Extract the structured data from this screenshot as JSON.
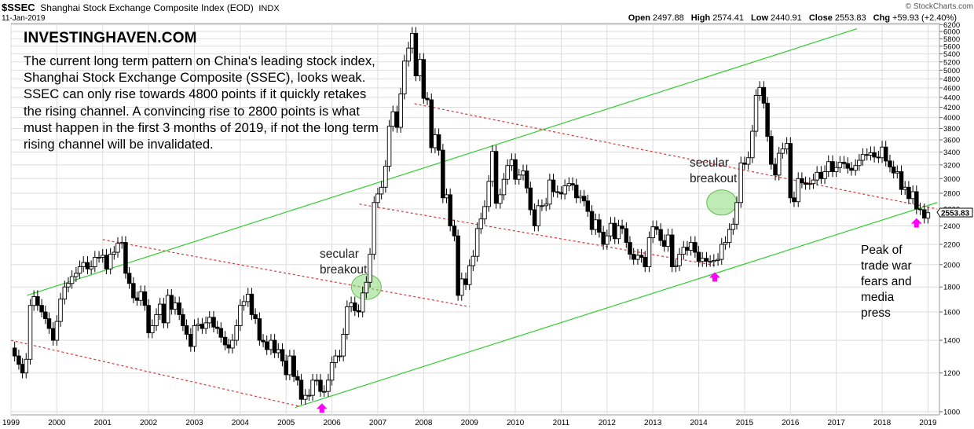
{
  "header": {
    "symbol": "$SSEC",
    "name": "Shanghai Stock Exchange Composite Index (EOD)",
    "exchange": "INDX",
    "date": "11-Jan-2019",
    "open_label": "Open",
    "open": "2497.88",
    "high_label": "High",
    "high": "2574.41",
    "low_label": "Low",
    "low": "2440.91",
    "close_label": "Close",
    "close": "2553.83",
    "chg_label": "Chg",
    "chg": "+59.93 (+2.40%)",
    "credit": "© StockCharts.com"
  },
  "annotations": {
    "brand": "INVESTINGHAVEN.COM",
    "description": "The current long term pattern on China's leading stock index, Shanghai Stock Exchange Composite (SSEC), looks weak. SSEC can only rise towards 4800 points if it quickly retakes the rising channel. A convincing rise to 2800 points is what must happen in the first 3 months of 2019, if not the long term rising channel will be invalidated.",
    "breakout1_line1": "secular",
    "breakout1_line2": "breakout",
    "breakout2_line1": "secular",
    "breakout2_line2": "breakout",
    "peak_line1": "Peak of",
    "peak_line2": "trade war",
    "peak_line3": "fears and",
    "peak_line4": "media",
    "peak_line5": "press"
  },
  "colors": {
    "candle_up": "#000000",
    "candle_down": "#000000",
    "trend_green": "#33cc33",
    "channel_red": "#dd3333",
    "ellipse_fill": "#88dd77",
    "arrow_magenta": "#ff00ff",
    "grid": "#dddddd"
  },
  "chart_data": {
    "type": "candlestick",
    "scale": "log",
    "ylim": [
      1000,
      6200
    ],
    "y_ticks": [
      1000,
      1200,
      1400,
      1600,
      1800,
      2000,
      2200,
      2400,
      2600,
      2800,
      3000,
      3200,
      3400,
      3600,
      3800,
      4000,
      4200,
      4400,
      4600,
      4800,
      5000,
      5200,
      5400,
      5600,
      5800,
      6000,
      6200
    ],
    "x_ticks": [
      "1999",
      "2000",
      "2001",
      "2002",
      "2003",
      "2004",
      "2005",
      "2006",
      "2007",
      "2008",
      "2009",
      "2010",
      "2011",
      "2012",
      "2013",
      "2014",
      "2015",
      "2016",
      "2017",
      "2018",
      "2019"
    ],
    "grid": true,
    "last_value_label": "2553.83",
    "monthly_close": [
      [
        1999.0,
        1350
      ],
      [
        1999.08,
        1300
      ],
      [
        1999.17,
        1250
      ],
      [
        1999.25,
        1200
      ],
      [
        1999.33,
        1280
      ],
      [
        1999.42,
        1650
      ],
      [
        1999.5,
        1720
      ],
      [
        1999.58,
        1650
      ],
      [
        1999.67,
        1600
      ],
      [
        1999.75,
        1550
      ],
      [
        1999.83,
        1480
      ],
      [
        1999.92,
        1400
      ],
      [
        2000.0,
        1530
      ],
      [
        2000.08,
        1700
      ],
      [
        2000.17,
        1800
      ],
      [
        2000.25,
        1830
      ],
      [
        2000.33,
        1890
      ],
      [
        2000.42,
        1920
      ],
      [
        2000.5,
        1980
      ],
      [
        2000.58,
        2020
      ],
      [
        2000.67,
        1960
      ],
      [
        2000.75,
        1980
      ],
      [
        2000.83,
        2070
      ],
      [
        2000.92,
        2070
      ],
      [
        2001.0,
        2090
      ],
      [
        2001.08,
        1960
      ],
      [
        2001.17,
        2100
      ],
      [
        2001.25,
        2120
      ],
      [
        2001.33,
        2210
      ],
      [
        2001.42,
        2220
      ],
      [
        2001.5,
        1920
      ],
      [
        2001.58,
        1830
      ],
      [
        2001.67,
        1710
      ],
      [
        2001.75,
        1690
      ],
      [
        2001.83,
        1760
      ],
      [
        2001.92,
        1650
      ],
      [
        2002.0,
        1450
      ],
      [
        2002.08,
        1500
      ],
      [
        2002.17,
        1580
      ],
      [
        2002.25,
        1660
      ],
      [
        2002.33,
        1520
      ],
      [
        2002.42,
        1730
      ],
      [
        2002.5,
        1620
      ],
      [
        2002.58,
        1670
      ],
      [
        2002.67,
        1580
      ],
      [
        2002.75,
        1500
      ],
      [
        2002.83,
        1440
      ],
      [
        2002.92,
        1360
      ],
      [
        2003.0,
        1500
      ],
      [
        2003.08,
        1510
      ],
      [
        2003.17,
        1480
      ],
      [
        2003.25,
        1520
      ],
      [
        2003.33,
        1560
      ],
      [
        2003.42,
        1490
      ],
      [
        2003.5,
        1480
      ],
      [
        2003.58,
        1420
      ],
      [
        2003.67,
        1370
      ],
      [
        2003.75,
        1350
      ],
      [
        2003.83,
        1400
      ],
      [
        2003.92,
        1500
      ],
      [
        2004.0,
        1650
      ],
      [
        2004.08,
        1680
      ],
      [
        2004.17,
        1740
      ],
      [
        2004.25,
        1580
      ],
      [
        2004.33,
        1550
      ],
      [
        2004.42,
        1400
      ],
      [
        2004.5,
        1390
      ],
      [
        2004.58,
        1340
      ],
      [
        2004.67,
        1400
      ],
      [
        2004.75,
        1320
      ],
      [
        2004.83,
        1340
      ],
      [
        2004.92,
        1270
      ],
      [
        2005.0,
        1190
      ],
      [
        2005.08,
        1300
      ],
      [
        2005.17,
        1180
      ],
      [
        2005.25,
        1160
      ],
      [
        2005.33,
        1060
      ],
      [
        2005.42,
        1080
      ],
      [
        2005.5,
        1080
      ],
      [
        2005.58,
        1160
      ],
      [
        2005.67,
        1160
      ],
      [
        2005.75,
        1100
      ],
      [
        2005.83,
        1100
      ],
      [
        2005.92,
        1160
      ],
      [
        2006.0,
        1260
      ],
      [
        2006.08,
        1300
      ],
      [
        2006.17,
        1300
      ],
      [
        2006.25,
        1440
      ],
      [
        2006.33,
        1640
      ],
      [
        2006.42,
        1670
      ],
      [
        2006.5,
        1610
      ],
      [
        2006.58,
        1600
      ],
      [
        2006.67,
        1750
      ],
      [
        2006.75,
        1840
      ],
      [
        2006.83,
        2100
      ],
      [
        2006.92,
        2680
      ],
      [
        2007.0,
        2790
      ],
      [
        2007.08,
        2880
      ],
      [
        2007.17,
        3180
      ],
      [
        2007.25,
        3840
      ],
      [
        2007.33,
        4110
      ],
      [
        2007.42,
        3820
      ],
      [
        2007.5,
        4470
      ],
      [
        2007.58,
        5220
      ],
      [
        2007.67,
        5550
      ],
      [
        2007.75,
        5950
      ],
      [
        2007.83,
        4870
      ],
      [
        2007.92,
        5260
      ],
      [
        2008.0,
        4380
      ],
      [
        2008.08,
        4350
      ],
      [
        2008.17,
        3470
      ],
      [
        2008.25,
        3690
      ],
      [
        2008.33,
        3430
      ],
      [
        2008.42,
        2740
      ],
      [
        2008.5,
        2780
      ],
      [
        2008.58,
        2400
      ],
      [
        2008.67,
        2290
      ],
      [
        2008.75,
        1730
      ],
      [
        2008.83,
        1870
      ],
      [
        2008.92,
        1820
      ],
      [
        2009.0,
        1990
      ],
      [
        2009.08,
        2080
      ],
      [
        2009.17,
        2370
      ],
      [
        2009.25,
        2480
      ],
      [
        2009.33,
        2630
      ],
      [
        2009.42,
        2960
      ],
      [
        2009.5,
        3410
      ],
      [
        2009.58,
        2670
      ],
      [
        2009.67,
        2780
      ],
      [
        2009.75,
        2990
      ],
      [
        2009.83,
        3190
      ],
      [
        2009.92,
        3280
      ],
      [
        2010.0,
        2990
      ],
      [
        2010.08,
        3050
      ],
      [
        2010.17,
        3110
      ],
      [
        2010.25,
        2870
      ],
      [
        2010.33,
        2590
      ],
      [
        2010.42,
        2400
      ],
      [
        2010.5,
        2640
      ],
      [
        2010.58,
        2640
      ],
      [
        2010.67,
        2660
      ],
      [
        2010.75,
        2980
      ],
      [
        2010.83,
        2820
      ],
      [
        2010.92,
        2810
      ],
      [
        2011.0,
        2790
      ],
      [
        2011.08,
        2900
      ],
      [
        2011.17,
        2930
      ],
      [
        2011.25,
        2910
      ],
      [
        2011.33,
        2740
      ],
      [
        2011.42,
        2760
      ],
      [
        2011.5,
        2700
      ],
      [
        2011.58,
        2570
      ],
      [
        2011.67,
        2360
      ],
      [
        2011.75,
        2470
      ],
      [
        2011.83,
        2330
      ],
      [
        2011.92,
        2200
      ],
      [
        2012.0,
        2290
      ],
      [
        2012.08,
        2430
      ],
      [
        2012.17,
        2260
      ],
      [
        2012.25,
        2400
      ],
      [
        2012.33,
        2370
      ],
      [
        2012.42,
        2220
      ],
      [
        2012.5,
        2100
      ],
      [
        2012.58,
        2050
      ],
      [
        2012.67,
        2090
      ],
      [
        2012.75,
        2070
      ],
      [
        2012.83,
        1980
      ],
      [
        2012.92,
        2270
      ],
      [
        2013.0,
        2390
      ],
      [
        2013.08,
        2360
      ],
      [
        2013.17,
        2240
      ],
      [
        2013.25,
        2180
      ],
      [
        2013.33,
        2300
      ],
      [
        2013.42,
        1980
      ],
      [
        2013.5,
        1990
      ],
      [
        2013.58,
        2100
      ],
      [
        2013.67,
        2170
      ],
      [
        2013.75,
        2140
      ],
      [
        2013.83,
        2220
      ],
      [
        2013.92,
        2120
      ],
      [
        2014.0,
        2030
      ],
      [
        2014.08,
        2060
      ],
      [
        2014.17,
        2030
      ],
      [
        2014.25,
        2030
      ],
      [
        2014.33,
        2040
      ],
      [
        2014.42,
        2050
      ],
      [
        2014.5,
        2200
      ],
      [
        2014.58,
        2220
      ],
      [
        2014.67,
        2360
      ],
      [
        2014.75,
        2420
      ],
      [
        2014.83,
        2680
      ],
      [
        2014.92,
        3230
      ],
      [
        2015.0,
        3210
      ],
      [
        2015.08,
        3310
      ],
      [
        2015.17,
        3750
      ],
      [
        2015.25,
        4440
      ],
      [
        2015.33,
        4610
      ],
      [
        2015.42,
        4280
      ],
      [
        2015.5,
        3660
      ],
      [
        2015.58,
        3210
      ],
      [
        2015.67,
        3050
      ],
      [
        2015.75,
        3380
      ],
      [
        2015.83,
        3450
      ],
      [
        2015.92,
        3540
      ],
      [
        2016.0,
        2740
      ],
      [
        2016.08,
        2690
      ],
      [
        2016.17,
        3000
      ],
      [
        2016.25,
        2940
      ],
      [
        2016.33,
        2920
      ],
      [
        2016.42,
        2930
      ],
      [
        2016.5,
        2980
      ],
      [
        2016.58,
        3090
      ],
      [
        2016.67,
        3000
      ],
      [
        2016.75,
        3100
      ],
      [
        2016.83,
        3250
      ],
      [
        2016.92,
        3100
      ],
      [
        2017.0,
        3160
      ],
      [
        2017.08,
        3240
      ],
      [
        2017.17,
        3220
      ],
      [
        2017.25,
        3150
      ],
      [
        2017.33,
        3120
      ],
      [
        2017.42,
        3190
      ],
      [
        2017.5,
        3270
      ],
      [
        2017.58,
        3360
      ],
      [
        2017.67,
        3350
      ],
      [
        2017.75,
        3390
      ],
      [
        2017.83,
        3320
      ],
      [
        2017.92,
        3310
      ],
      [
        2018.0,
        3480
      ],
      [
        2018.08,
        3260
      ],
      [
        2018.17,
        3170
      ],
      [
        2018.25,
        3080
      ],
      [
        2018.33,
        3100
      ],
      [
        2018.42,
        2850
      ],
      [
        2018.5,
        2880
      ],
      [
        2018.58,
        2730
      ],
      [
        2018.67,
        2820
      ],
      [
        2018.75,
        2600
      ],
      [
        2018.83,
        2590
      ],
      [
        2018.92,
        2490
      ],
      [
        2019.0,
        2554
      ]
    ]
  }
}
